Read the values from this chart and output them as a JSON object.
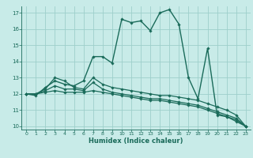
{
  "title": "",
  "xlabel": "Humidex (Indice chaleur)",
  "xlim": [
    -0.5,
    23.5
  ],
  "ylim": [
    9.8,
    17.4
  ],
  "yticks": [
    10,
    11,
    12,
    13,
    14,
    15,
    16,
    17
  ],
  "xticks": [
    0,
    1,
    2,
    3,
    4,
    5,
    6,
    7,
    8,
    9,
    10,
    11,
    12,
    13,
    14,
    15,
    16,
    17,
    18,
    19,
    20,
    21,
    22,
    23
  ],
  "background_color": "#c8ebe8",
  "grid_color": "#9ecfcb",
  "line_color": "#1a6b5a",
  "series": [
    {
      "x": [
        0,
        1,
        2,
        3,
        4,
        5,
        6,
        7,
        8,
        9,
        10,
        11,
        12,
        13,
        14,
        15,
        16,
        17,
        18,
        19,
        20,
        21,
        22,
        23
      ],
      "y": [
        12.0,
        11.9,
        12.4,
        12.8,
        12.6,
        12.5,
        12.8,
        14.3,
        14.3,
        13.9,
        16.6,
        16.4,
        16.5,
        15.9,
        17.0,
        17.2,
        16.3,
        13.0,
        11.7,
        14.8,
        10.7,
        10.6,
        10.4,
        10.0
      ],
      "marker": "D",
      "markersize": 1.8,
      "linewidth": 1.0
    },
    {
      "x": [
        0,
        1,
        2,
        3,
        4,
        5,
        6,
        7,
        8,
        9,
        10,
        11,
        12,
        13,
        14,
        15,
        16,
        17,
        18,
        19,
        20,
        21,
        22,
        23
      ],
      "y": [
        12.0,
        12.0,
        12.3,
        13.0,
        12.8,
        12.4,
        12.3,
        13.0,
        12.6,
        12.4,
        12.3,
        12.2,
        12.1,
        12.0,
        11.9,
        11.9,
        11.8,
        11.7,
        11.6,
        11.4,
        11.2,
        11.0,
        10.7,
        10.0
      ],
      "marker": "D",
      "markersize": 1.8,
      "linewidth": 0.9
    },
    {
      "x": [
        0,
        1,
        2,
        3,
        4,
        5,
        6,
        7,
        8,
        9,
        10,
        11,
        12,
        13,
        14,
        15,
        16,
        17,
        18,
        19,
        20,
        21,
        22,
        23
      ],
      "y": [
        12.0,
        12.0,
        12.2,
        12.5,
        12.3,
        12.3,
        12.2,
        12.7,
        12.3,
        12.1,
        12.0,
        11.9,
        11.8,
        11.7,
        11.7,
        11.6,
        11.5,
        11.4,
        11.3,
        11.1,
        10.9,
        10.7,
        10.5,
        10.0
      ],
      "marker": "D",
      "markersize": 1.8,
      "linewidth": 0.9
    },
    {
      "x": [
        0,
        1,
        2,
        3,
        4,
        5,
        6,
        7,
        8,
        9,
        10,
        11,
        12,
        13,
        14,
        15,
        16,
        17,
        18,
        19,
        20,
        21,
        22,
        23
      ],
      "y": [
        12.0,
        12.0,
        12.1,
        12.2,
        12.1,
        12.1,
        12.1,
        12.2,
        12.1,
        12.0,
        11.9,
        11.8,
        11.7,
        11.6,
        11.6,
        11.5,
        11.4,
        11.3,
        11.2,
        11.0,
        10.8,
        10.6,
        10.3,
        10.0
      ],
      "marker": "D",
      "markersize": 1.8,
      "linewidth": 0.9
    }
  ]
}
